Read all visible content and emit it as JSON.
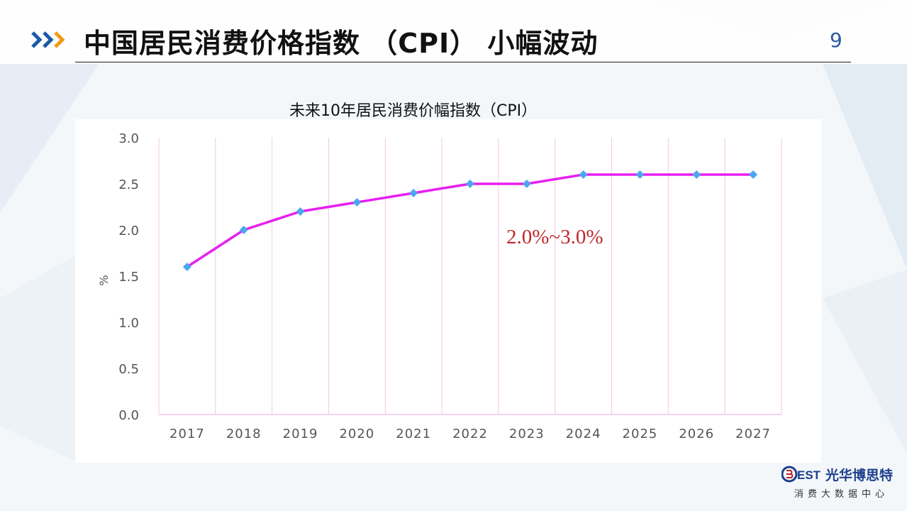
{
  "header": {
    "title": "中国居民消费价格指数 （CPI） 小幅波动",
    "page_number": "9"
  },
  "chart_heading": "未来10年居民消费价幅指数（CPI）",
  "annotation": "2.0%~3.0%",
  "brand": {
    "mark": "BEST",
    "name": "光华博思特",
    "subtitle": "消费大数据中心"
  },
  "colors": {
    "line": "#e81ff0",
    "marker": "#4da6f0",
    "gridline": "#f1c8e6",
    "annotation": "#c0272d",
    "accent_blue": "#1b5aa8",
    "accent_orange": "#f29a1a"
  },
  "chart_data": {
    "type": "line",
    "title": "未来10年居民消费价幅指数（CPI）",
    "xlabel": "",
    "ylabel": "%",
    "categories": [
      "2017",
      "2018",
      "2019",
      "2020",
      "2021",
      "2022",
      "2023",
      "2024",
      "2025",
      "2026",
      "2027"
    ],
    "series": [
      {
        "values": [
          1.6,
          2.0,
          2.2,
          2.3,
          2.4,
          2.5,
          2.5,
          2.6,
          2.6,
          2.6,
          2.6
        ]
      }
    ],
    "ylim": [
      0,
      3.0
    ],
    "yticks": [
      "0.0",
      "0.5",
      "1.0",
      "1.5",
      "2.0",
      "2.5",
      "3.0"
    ],
    "grid": "vertical",
    "legend": "none",
    "marker": "diamond"
  }
}
